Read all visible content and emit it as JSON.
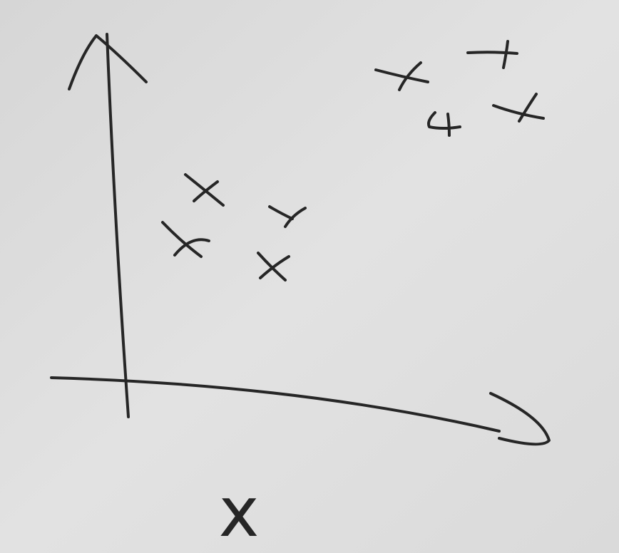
{
  "axis_label": "x"
}
